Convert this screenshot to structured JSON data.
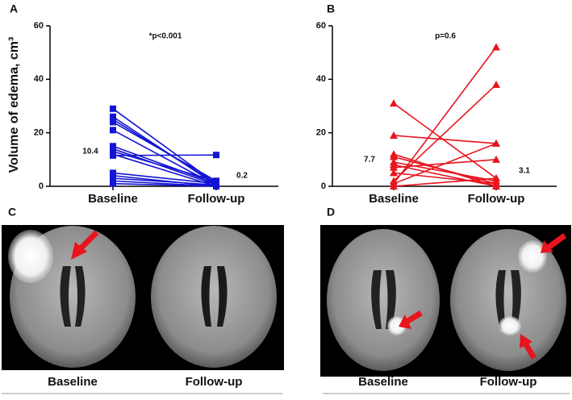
{
  "chart_data": [
    {
      "type": "line",
      "panel": "A",
      "ylabel": "Volume of edema, cm³",
      "annotations": [
        "*p<0.001",
        "10.4",
        "0.2"
      ],
      "categories": [
        "Baseline",
        "Follow-up"
      ],
      "color": "#1414d4",
      "marker": "square",
      "ylim": [
        0,
        60
      ],
      "yticks": [
        0,
        20,
        40,
        60
      ],
      "series": [
        {
          "values": [
            29,
            1
          ]
        },
        {
          "values": [
            26,
            0.5
          ]
        },
        {
          "values": [
            25,
            1
          ]
        },
        {
          "values": [
            24,
            2
          ]
        },
        {
          "values": [
            21,
            0.3
          ]
        },
        {
          "values": [
            15,
            1
          ]
        },
        {
          "values": [
            14,
            0.5
          ]
        },
        {
          "values": [
            13,
            2
          ]
        },
        {
          "values": [
            12,
            0
          ]
        },
        {
          "values": [
            11.5,
            11.7
          ]
        },
        {
          "values": [
            5,
            1
          ]
        },
        {
          "values": [
            4,
            0
          ]
        },
        {
          "values": [
            3,
            0.5
          ]
        },
        {
          "values": [
            2,
            0
          ]
        },
        {
          "values": [
            1,
            0
          ]
        }
      ]
    },
    {
      "type": "line",
      "panel": "B",
      "annotations": [
        "p=0.6",
        "7.7",
        "3.1"
      ],
      "categories": [
        "Baseline",
        "Follow-up"
      ],
      "color": "#e8141e",
      "marker": "triangle",
      "ylim": [
        0,
        60
      ],
      "yticks": [
        0,
        20,
        40,
        60
      ],
      "series": [
        {
          "values": [
            31,
            3
          ]
        },
        {
          "values": [
            19,
            16
          ]
        },
        {
          "values": [
            12,
            0
          ]
        },
        {
          "values": [
            11,
            1
          ]
        },
        {
          "values": [
            9,
            2
          ]
        },
        {
          "values": [
            8,
            0
          ]
        },
        {
          "values": [
            7,
            10
          ]
        },
        {
          "values": [
            5,
            1
          ]
        },
        {
          "values": [
            2,
            38
          ]
        },
        {
          "values": [
            1,
            52
          ]
        },
        {
          "values": [
            1,
            16
          ]
        },
        {
          "values": [
            0,
            3
          ]
        }
      ]
    }
  ],
  "images": [
    {
      "label": "C",
      "captions": [
        "Baseline",
        "Follow-up"
      ]
    },
    {
      "label": "D",
      "captions": [
        "Baseline",
        "Follow-up"
      ]
    }
  ]
}
